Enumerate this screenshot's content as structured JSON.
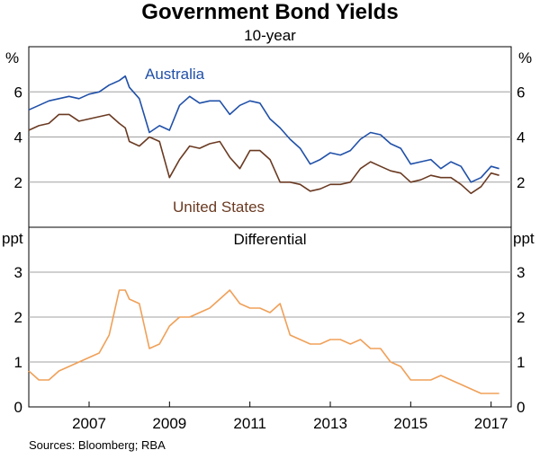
{
  "chart_data": [
    {
      "type": "line",
      "title": "Government Bond Yields",
      "subtitle": "10-year",
      "unit": "%",
      "ylim": [
        0,
        8
      ],
      "yticks": [
        2,
        4,
        6
      ],
      "grid": true,
      "series": [
        {
          "name": "Australia",
          "color": "#2050a8",
          "x": [
            2005.5,
            2005.75,
            2006.0,
            2006.25,
            2006.5,
            2006.75,
            2007.0,
            2007.25,
            2007.5,
            2007.75,
            2007.9,
            2008.0,
            2008.25,
            2008.5,
            2008.75,
            2009.0,
            2009.25,
            2009.5,
            2009.75,
            2010.0,
            2010.25,
            2010.5,
            2010.75,
            2011.0,
            2011.25,
            2011.5,
            2011.75,
            2012.0,
            2012.25,
            2012.5,
            2012.75,
            2013.0,
            2013.25,
            2013.5,
            2013.75,
            2014.0,
            2014.25,
            2014.5,
            2014.75,
            2015.0,
            2015.25,
            2015.5,
            2015.75,
            2016.0,
            2016.25,
            2016.5,
            2016.75,
            2017.0,
            2017.2
          ],
          "values": [
            5.2,
            5.4,
            5.6,
            5.7,
            5.8,
            5.7,
            5.9,
            6.0,
            6.3,
            6.5,
            6.7,
            6.2,
            5.7,
            4.2,
            4.5,
            4.3,
            5.4,
            5.8,
            5.5,
            5.6,
            5.6,
            5.0,
            5.4,
            5.6,
            5.5,
            4.8,
            4.4,
            3.9,
            3.5,
            2.8,
            3.0,
            3.3,
            3.2,
            3.4,
            3.9,
            4.2,
            4.1,
            3.7,
            3.5,
            2.8,
            2.9,
            3.0,
            2.6,
            2.9,
            2.7,
            2.0,
            2.2,
            2.7,
            2.6
          ]
        },
        {
          "name": "United States",
          "color": "#6a3a22",
          "x": [
            2005.5,
            2005.75,
            2006.0,
            2006.25,
            2006.5,
            2006.75,
            2007.0,
            2007.25,
            2007.5,
            2007.75,
            2007.9,
            2008.0,
            2008.25,
            2008.5,
            2008.75,
            2009.0,
            2009.25,
            2009.5,
            2009.75,
            2010.0,
            2010.25,
            2010.5,
            2010.75,
            2011.0,
            2011.25,
            2011.5,
            2011.75,
            2012.0,
            2012.25,
            2012.5,
            2012.75,
            2013.0,
            2013.25,
            2013.5,
            2013.75,
            2014.0,
            2014.25,
            2014.5,
            2014.75,
            2015.0,
            2015.25,
            2015.5,
            2015.75,
            2016.0,
            2016.25,
            2016.5,
            2016.75,
            2017.0,
            2017.2
          ],
          "values": [
            4.3,
            4.5,
            4.6,
            5.0,
            5.0,
            4.7,
            4.8,
            4.9,
            5.0,
            4.6,
            4.4,
            3.8,
            3.6,
            4.0,
            3.8,
            2.2,
            3.0,
            3.6,
            3.5,
            3.7,
            3.8,
            3.1,
            2.6,
            3.4,
            3.4,
            3.0,
            2.0,
            2.0,
            1.9,
            1.6,
            1.7,
            1.9,
            1.9,
            2.0,
            2.6,
            2.9,
            2.7,
            2.5,
            2.4,
            2.0,
            2.1,
            2.3,
            2.2,
            2.2,
            1.9,
            1.5,
            1.8,
            2.4,
            2.3
          ]
        }
      ]
    },
    {
      "type": "line",
      "title": "Differential",
      "unit": "ppt",
      "ylim": [
        0,
        4
      ],
      "yticks": [
        0,
        1,
        2,
        3
      ],
      "grid": true,
      "series": [
        {
          "color": "#f0a058",
          "x": [
            2005.5,
            2005.75,
            2006.0,
            2006.25,
            2006.5,
            2006.75,
            2007.0,
            2007.25,
            2007.5,
            2007.75,
            2007.9,
            2008.0,
            2008.25,
            2008.5,
            2008.75,
            2009.0,
            2009.25,
            2009.5,
            2009.75,
            2010.0,
            2010.25,
            2010.5,
            2010.75,
            2011.0,
            2011.25,
            2011.5,
            2011.75,
            2012.0,
            2012.25,
            2012.5,
            2012.75,
            2013.0,
            2013.25,
            2013.5,
            2013.75,
            2014.0,
            2014.25,
            2014.5,
            2014.75,
            2015.0,
            2015.25,
            2015.5,
            2015.75,
            2016.0,
            2016.25,
            2016.5,
            2016.75,
            2017.0,
            2017.2
          ],
          "values": [
            0.8,
            0.6,
            0.6,
            0.8,
            0.9,
            1.0,
            1.1,
            1.2,
            1.6,
            2.6,
            2.6,
            2.4,
            2.3,
            1.3,
            1.4,
            1.8,
            2.0,
            2.0,
            2.1,
            2.2,
            2.4,
            2.6,
            2.3,
            2.2,
            2.2,
            2.1,
            2.3,
            1.6,
            1.5,
            1.4,
            1.4,
            1.5,
            1.5,
            1.4,
            1.5,
            1.3,
            1.3,
            1.0,
            0.9,
            0.6,
            0.6,
            0.6,
            0.7,
            0.6,
            0.5,
            0.4,
            0.3,
            0.3,
            0.3
          ]
        }
      ]
    }
  ],
  "shared_axis": {
    "xlim": [
      2005.5,
      2017.5
    ],
    "tick_labels": [
      "2007",
      "2009",
      "2011",
      "2013",
      "2015",
      "2017"
    ],
    "tick_values": [
      2007,
      2009,
      2011,
      2013,
      2015,
      2017
    ]
  },
  "labels": {
    "title": "Government Bond Yields",
    "subtitle": "10-year",
    "top_unit": "%",
    "bottom_unit": "ppt",
    "top_series_1": "Australia",
    "top_series_2": "United States",
    "bottom_panel": "Differential",
    "source": "Sources: Bloomberg; RBA"
  }
}
